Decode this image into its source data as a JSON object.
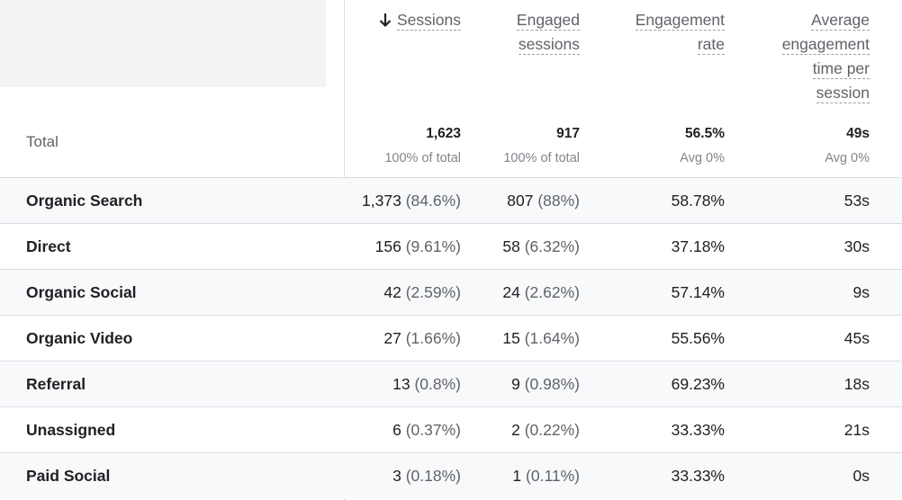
{
  "header": {
    "sessions_label": "Sessions",
    "engaged_sessions_label_1": "Engaged",
    "engaged_sessions_label_2": "sessions",
    "engagement_rate_label_1": "Engagement",
    "engagement_rate_label_2": "rate",
    "avg_time_label_1": "Average",
    "avg_time_label_2": "engagement",
    "avg_time_label_3": "time per",
    "avg_time_label_4": "session",
    "sort_icon": "arrow-down-icon"
  },
  "total": {
    "label": "Total",
    "sessions": "1,623",
    "sessions_sub": "100% of total",
    "engaged_sessions": "917",
    "engaged_sessions_sub": "100% of total",
    "engagement_rate": "56.5%",
    "engagement_rate_sub": "Avg 0%",
    "avg_time": "49s",
    "avg_time_sub": "Avg 0%"
  },
  "rows": [
    {
      "channel": "Organic Search",
      "sessions": "1,373",
      "sessions_pct": "(84.6%)",
      "engaged": "807",
      "engaged_pct": "(88%)",
      "rate": "58.78%",
      "time": "53s"
    },
    {
      "channel": "Direct",
      "sessions": "156",
      "sessions_pct": "(9.61%)",
      "engaged": "58",
      "engaged_pct": "(6.32%)",
      "rate": "37.18%",
      "time": "30s"
    },
    {
      "channel": "Organic Social",
      "sessions": "42",
      "sessions_pct": "(2.59%)",
      "engaged": "24",
      "engaged_pct": "(2.62%)",
      "rate": "57.14%",
      "time": "9s"
    },
    {
      "channel": "Organic Video",
      "sessions": "27",
      "sessions_pct": "(1.66%)",
      "engaged": "15",
      "engaged_pct": "(1.64%)",
      "rate": "55.56%",
      "time": "45s"
    },
    {
      "channel": "Referral",
      "sessions": "13",
      "sessions_pct": "(0.8%)",
      "engaged": "9",
      "engaged_pct": "(0.98%)",
      "rate": "69.23%",
      "time": "18s"
    },
    {
      "channel": "Unassigned",
      "sessions": "6",
      "sessions_pct": "(0.37%)",
      "engaged": "2",
      "engaged_pct": "(0.22%)",
      "rate": "33.33%",
      "time": "21s"
    },
    {
      "channel": "Paid Social",
      "sessions": "3",
      "sessions_pct": "(0.18%)",
      "engaged": "1",
      "engaged_pct": "(0.11%)",
      "rate": "33.33%",
      "time": "0s"
    }
  ]
}
